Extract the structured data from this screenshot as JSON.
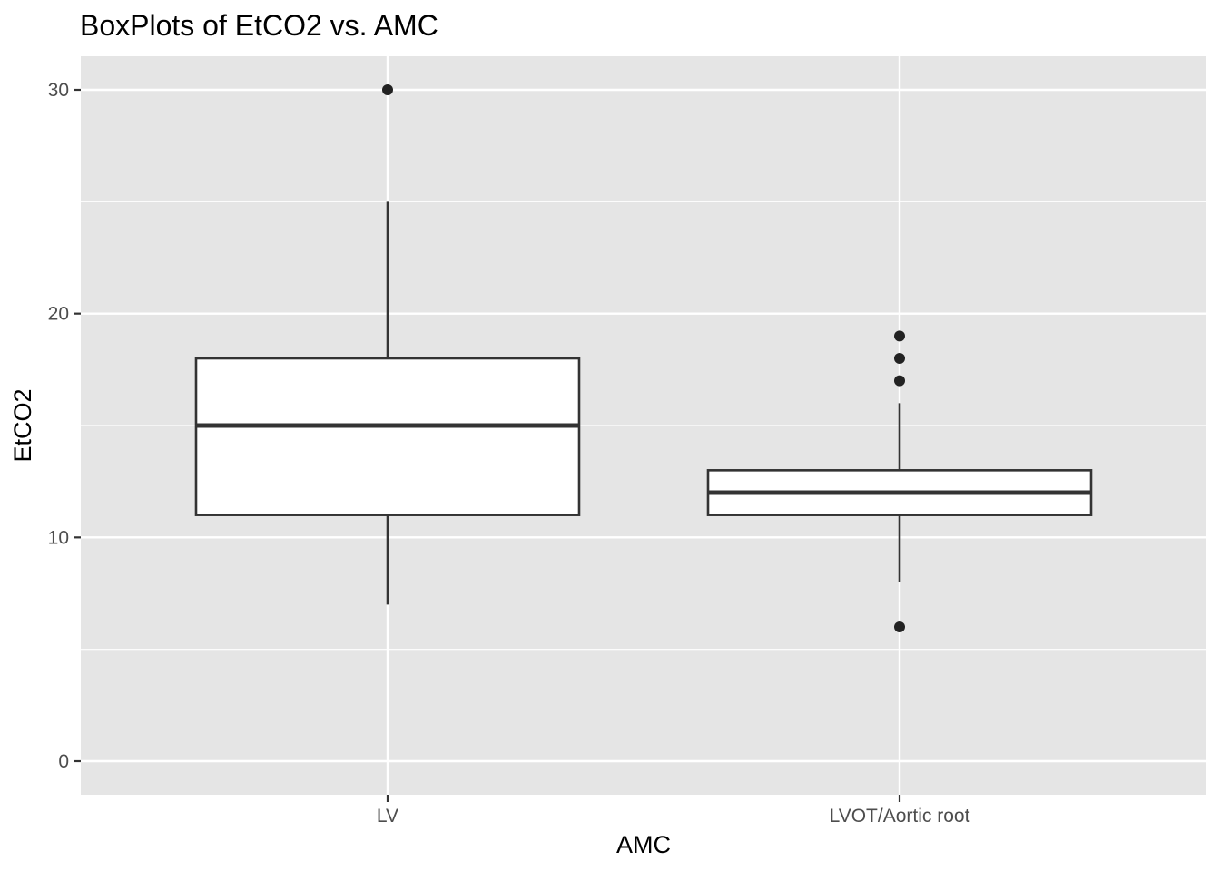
{
  "chart_data": {
    "type": "box",
    "title": "BoxPlots of EtCO2 vs. AMC",
    "xlabel": "AMC",
    "ylabel": "EtCO2",
    "categories": [
      "LV",
      "LVOT/Aortic root"
    ],
    "ylim": [
      -1.5,
      31.5
    ],
    "yticks": [
      0,
      10,
      20,
      30
    ],
    "grid": true,
    "legend": "none",
    "boxes": [
      {
        "category": "LV",
        "whisker_low": 7,
        "q1": 11,
        "median": 15,
        "q3": 18,
        "whisker_high": 25,
        "outliers": [
          30
        ]
      },
      {
        "category": "LVOT/Aortic root",
        "whisker_low": 8,
        "q1": 11,
        "median": 12,
        "q3": 13,
        "whisker_high": 16,
        "outliers": [
          19,
          18,
          17,
          6
        ]
      }
    ],
    "colors": {
      "panel_background": "#e5e5e5",
      "grid_line": "#ffffff",
      "box_fill": "#ffffff",
      "box_outline": "#333333",
      "outlier": "#222222"
    }
  }
}
